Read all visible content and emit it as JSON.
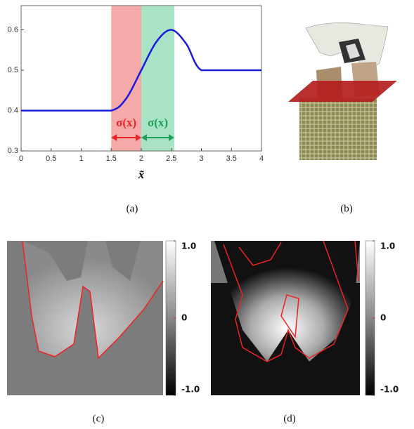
{
  "chart_data": {
    "type": "line",
    "x": [
      0,
      0.5,
      1,
      1.5,
      1.75,
      2,
      2.25,
      2.5,
      2.75,
      3,
      3.5,
      4
    ],
    "values": [
      0.4,
      0.4,
      0.4,
      0.4,
      0.43,
      0.5,
      0.57,
      0.6,
      0.565,
      0.5,
      0.5,
      0.5
    ],
    "color": "#1a1adf",
    "xlabel": "x̃",
    "xlim": [
      0,
      4
    ],
    "xticks": [
      0,
      0.5,
      1,
      1.5,
      2,
      2.5,
      3,
      3.5,
      4
    ],
    "ylim": [
      0.3,
      0.66
    ],
    "yticks": [
      0.3,
      0.4,
      0.5,
      0.6
    ],
    "regions": [
      {
        "x": [
          1.5,
          2
        ],
        "color": "#f5a9a9",
        "label": "σ(x)",
        "label_color": "#e8262a"
      },
      {
        "x": [
          2,
          2.55
        ],
        "color": "#a9e3c5",
        "label": "σ(x)",
        "label_color": "#1fa05a"
      }
    ]
  },
  "figure": {
    "captions": [
      "(a)",
      "(b)",
      "(c)",
      "(d)"
    ],
    "colorbar_ticks": [
      {
        "value": 1,
        "label": "1.0"
      },
      0,
      {
        "value": -1,
        "label": "-1.0"
      }
    ]
  }
}
